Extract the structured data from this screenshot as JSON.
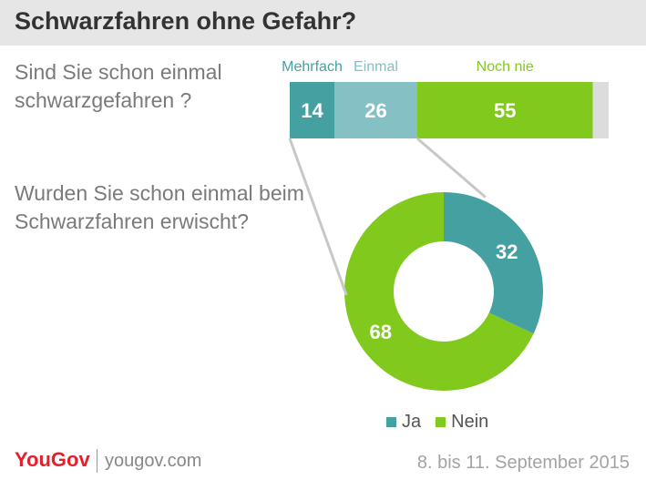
{
  "title": "Schwarzfahren ohne Gefahr?",
  "question1": "Sind Sie schon einmal schwarzgefahren ?",
  "question2": "Wurden Sie schon einmal beim Schwarzfahren erwischt?",
  "colors": {
    "teal": "#44a0a1",
    "lightteal": "#85c0c4",
    "green": "#82c91e",
    "grey": "#dcdcdc"
  },
  "chart_data": [
    {
      "type": "bar",
      "orientation": "horizontal-stacked",
      "categories": [
        "Mehrfach",
        "Einmal",
        "Noch nie"
      ],
      "values": [
        14,
        26,
        55
      ],
      "remainder": 5
    },
    {
      "type": "pie",
      "variant": "donut",
      "categories": [
        "Ja",
        "Nein"
      ],
      "values": [
        32,
        68
      ]
    }
  ],
  "legend": [
    {
      "label": "Ja",
      "color": "#44a0a1"
    },
    {
      "label": "Nein",
      "color": "#82c91e"
    }
  ],
  "footer": {
    "logo": "YouGov",
    "site": "yougov.com",
    "date": "8. bis 11. September 2015"
  }
}
